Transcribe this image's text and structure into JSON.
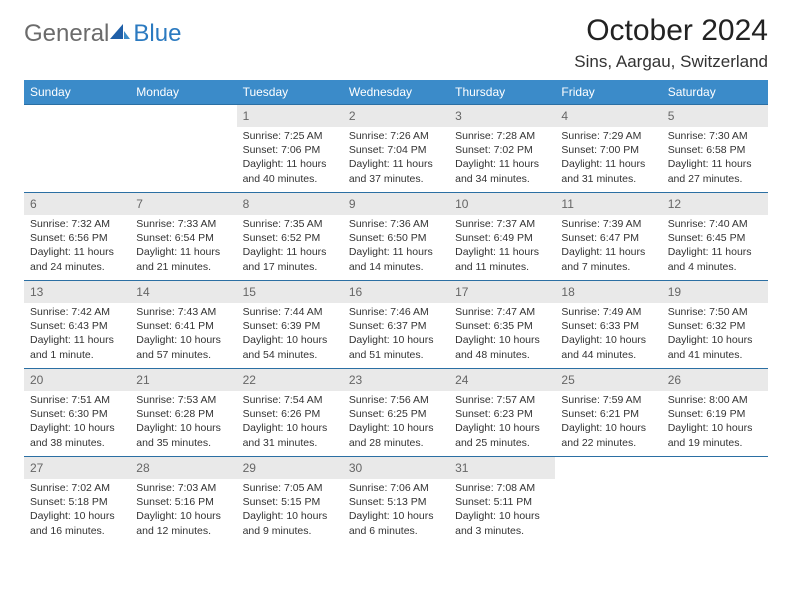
{
  "brand": {
    "part1": "General",
    "part2": "Blue"
  },
  "title": "October 2024",
  "location": "Sins, Aargau, Switzerland",
  "colors": {
    "header_bg": "#3b8bc9",
    "header_text": "#ffffff",
    "divider": "#2b6fa3",
    "daynum_bg": "#e9e9e9",
    "daynum_text": "#666666",
    "body_text": "#333333",
    "logo_gray": "#6b6b6b",
    "logo_blue": "#2b7ac0"
  },
  "calendar": {
    "type": "table",
    "columns": [
      "Sunday",
      "Monday",
      "Tuesday",
      "Wednesday",
      "Thursday",
      "Friday",
      "Saturday"
    ],
    "weeks": [
      [
        null,
        null,
        {
          "n": "1",
          "sunrise": "7:25 AM",
          "sunset": "7:06 PM",
          "daylight": "11 hours and 40 minutes."
        },
        {
          "n": "2",
          "sunrise": "7:26 AM",
          "sunset": "7:04 PM",
          "daylight": "11 hours and 37 minutes."
        },
        {
          "n": "3",
          "sunrise": "7:28 AM",
          "sunset": "7:02 PM",
          "daylight": "11 hours and 34 minutes."
        },
        {
          "n": "4",
          "sunrise": "7:29 AM",
          "sunset": "7:00 PM",
          "daylight": "11 hours and 31 minutes."
        },
        {
          "n": "5",
          "sunrise": "7:30 AM",
          "sunset": "6:58 PM",
          "daylight": "11 hours and 27 minutes."
        }
      ],
      [
        {
          "n": "6",
          "sunrise": "7:32 AM",
          "sunset": "6:56 PM",
          "daylight": "11 hours and 24 minutes."
        },
        {
          "n": "7",
          "sunrise": "7:33 AM",
          "sunset": "6:54 PM",
          "daylight": "11 hours and 21 minutes."
        },
        {
          "n": "8",
          "sunrise": "7:35 AM",
          "sunset": "6:52 PM",
          "daylight": "11 hours and 17 minutes."
        },
        {
          "n": "9",
          "sunrise": "7:36 AM",
          "sunset": "6:50 PM",
          "daylight": "11 hours and 14 minutes."
        },
        {
          "n": "10",
          "sunrise": "7:37 AM",
          "sunset": "6:49 PM",
          "daylight": "11 hours and 11 minutes."
        },
        {
          "n": "11",
          "sunrise": "7:39 AM",
          "sunset": "6:47 PM",
          "daylight": "11 hours and 7 minutes."
        },
        {
          "n": "12",
          "sunrise": "7:40 AM",
          "sunset": "6:45 PM",
          "daylight": "11 hours and 4 minutes."
        }
      ],
      [
        {
          "n": "13",
          "sunrise": "7:42 AM",
          "sunset": "6:43 PM",
          "daylight": "11 hours and 1 minute."
        },
        {
          "n": "14",
          "sunrise": "7:43 AM",
          "sunset": "6:41 PM",
          "daylight": "10 hours and 57 minutes."
        },
        {
          "n": "15",
          "sunrise": "7:44 AM",
          "sunset": "6:39 PM",
          "daylight": "10 hours and 54 minutes."
        },
        {
          "n": "16",
          "sunrise": "7:46 AM",
          "sunset": "6:37 PM",
          "daylight": "10 hours and 51 minutes."
        },
        {
          "n": "17",
          "sunrise": "7:47 AM",
          "sunset": "6:35 PM",
          "daylight": "10 hours and 48 minutes."
        },
        {
          "n": "18",
          "sunrise": "7:49 AM",
          "sunset": "6:33 PM",
          "daylight": "10 hours and 44 minutes."
        },
        {
          "n": "19",
          "sunrise": "7:50 AM",
          "sunset": "6:32 PM",
          "daylight": "10 hours and 41 minutes."
        }
      ],
      [
        {
          "n": "20",
          "sunrise": "7:51 AM",
          "sunset": "6:30 PM",
          "daylight": "10 hours and 38 minutes."
        },
        {
          "n": "21",
          "sunrise": "7:53 AM",
          "sunset": "6:28 PM",
          "daylight": "10 hours and 35 minutes."
        },
        {
          "n": "22",
          "sunrise": "7:54 AM",
          "sunset": "6:26 PM",
          "daylight": "10 hours and 31 minutes."
        },
        {
          "n": "23",
          "sunrise": "7:56 AM",
          "sunset": "6:25 PM",
          "daylight": "10 hours and 28 minutes."
        },
        {
          "n": "24",
          "sunrise": "7:57 AM",
          "sunset": "6:23 PM",
          "daylight": "10 hours and 25 minutes."
        },
        {
          "n": "25",
          "sunrise": "7:59 AM",
          "sunset": "6:21 PM",
          "daylight": "10 hours and 22 minutes."
        },
        {
          "n": "26",
          "sunrise": "8:00 AM",
          "sunset": "6:19 PM",
          "daylight": "10 hours and 19 minutes."
        }
      ],
      [
        {
          "n": "27",
          "sunrise": "7:02 AM",
          "sunset": "5:18 PM",
          "daylight": "10 hours and 16 minutes."
        },
        {
          "n": "28",
          "sunrise": "7:03 AM",
          "sunset": "5:16 PM",
          "daylight": "10 hours and 12 minutes."
        },
        {
          "n": "29",
          "sunrise": "7:05 AM",
          "sunset": "5:15 PM",
          "daylight": "10 hours and 9 minutes."
        },
        {
          "n": "30",
          "sunrise": "7:06 AM",
          "sunset": "5:13 PM",
          "daylight": "10 hours and 6 minutes."
        },
        {
          "n": "31",
          "sunrise": "7:08 AM",
          "sunset": "5:11 PM",
          "daylight": "10 hours and 3 minutes."
        },
        null,
        null
      ]
    ],
    "label_sunrise": "Sunrise:",
    "label_sunset": "Sunset:",
    "label_daylight": "Daylight:"
  }
}
